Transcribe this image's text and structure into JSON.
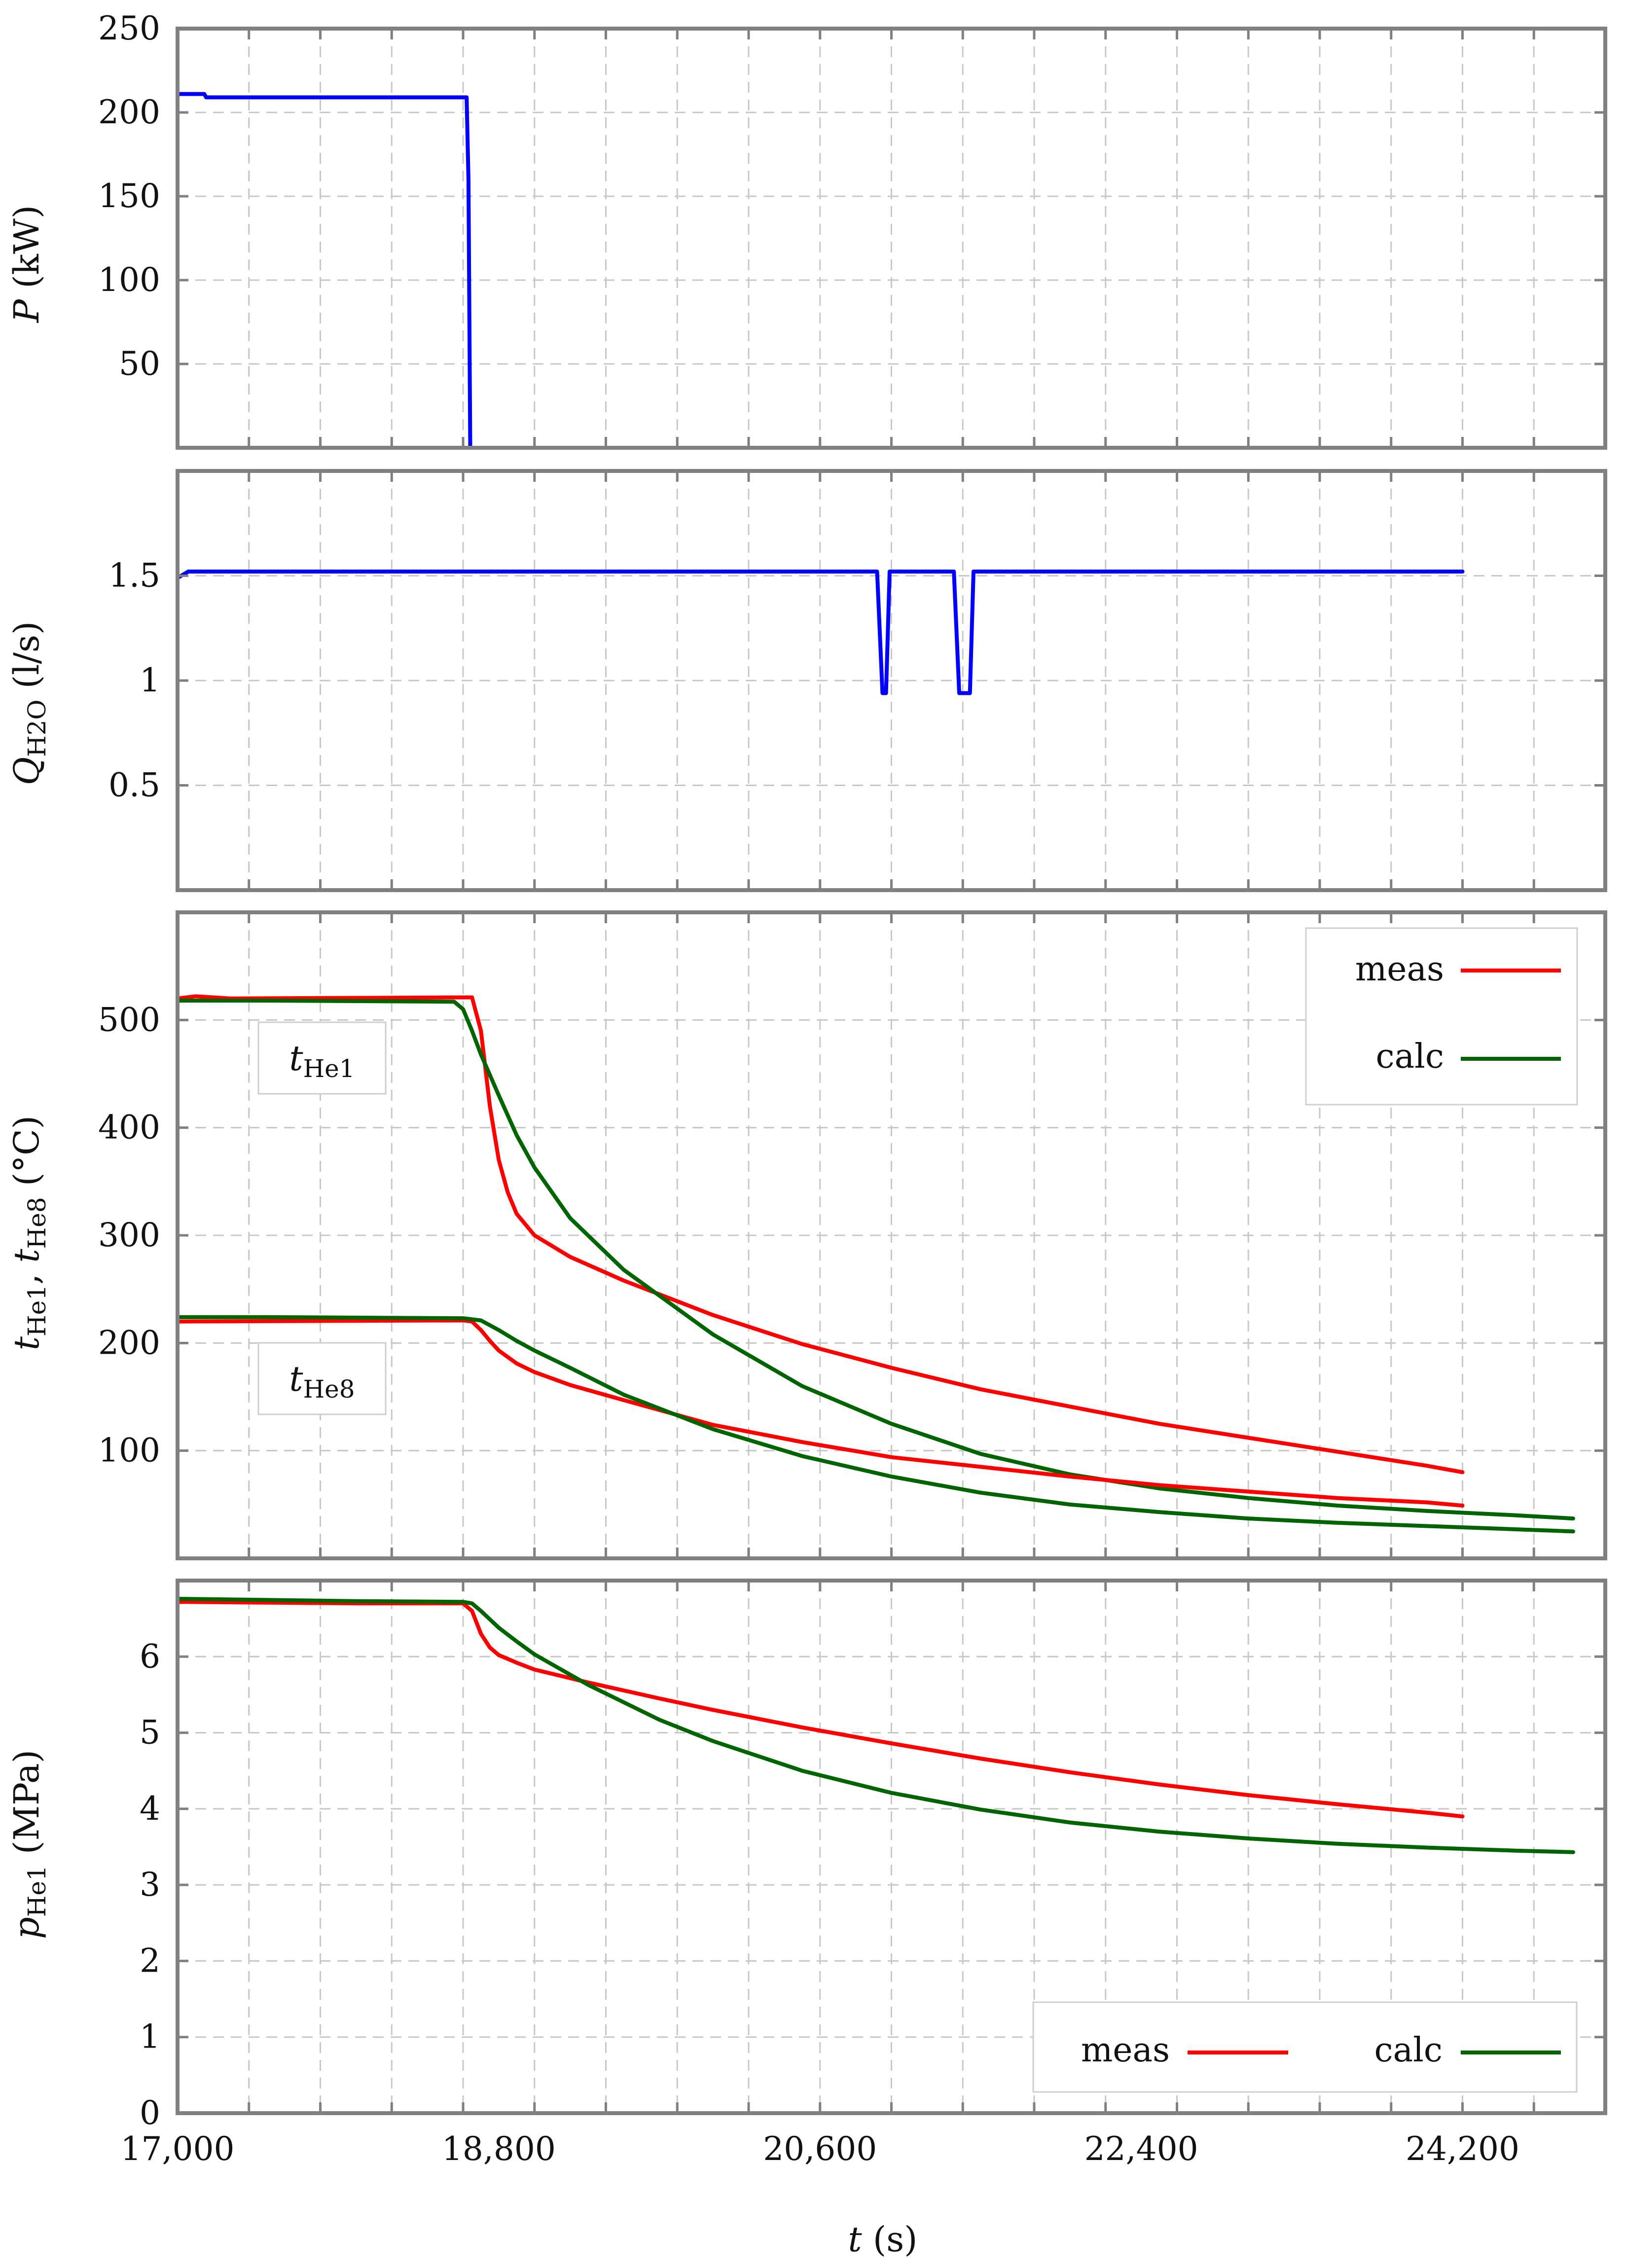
{
  "chart_data": [
    {
      "id": "power",
      "type": "line",
      "ylabel_main": "P",
      "ylabel_unit": " (kW)",
      "xlim": [
        17000,
        25000
      ],
      "ylim": [
        0,
        250
      ],
      "y_ticks": [
        50,
        100,
        150,
        200,
        250
      ],
      "y_tick_labels": [
        "50",
        "100",
        "150",
        "200",
        "250"
      ],
      "grid": true,
      "series": [
        {
          "name": "P",
          "color": "#0000ff",
          "x": [
            17000,
            17150,
            17160,
            18620,
            18630,
            18640
          ],
          "y": [
            211,
            211,
            209,
            209,
            160,
            0
          ]
        }
      ]
    },
    {
      "id": "flow",
      "type": "line",
      "ylabel_main": "Q",
      "ylabel_sub": "H2O",
      "ylabel_unit": " (l/s)",
      "xlim": [
        17000,
        25000
      ],
      "ylim": [
        0,
        2
      ],
      "y_ticks": [
        0.5,
        1,
        1.5
      ],
      "y_tick_labels": [
        "0.5",
        "1",
        "1.5"
      ],
      "grid": true,
      "series": [
        {
          "name": "Q_H2O",
          "color": "#0000ff",
          "x": [
            17000,
            17040,
            17060,
            20920,
            20950,
            20970,
            20990,
            21350,
            21380,
            21440,
            21460,
            24200
          ],
          "y": [
            1.49,
            1.51,
            1.52,
            1.52,
            0.94,
            0.94,
            1.52,
            1.52,
            0.94,
            0.94,
            1.52,
            1.52
          ]
        }
      ]
    },
    {
      "id": "temperature",
      "type": "line",
      "ylabel_main": "t",
      "ylabel_sub": "He1",
      "ylabel_main2": "t",
      "ylabel_sub2": "He8",
      "ylabel_unit": " (°C)",
      "xlim": [
        17000,
        25000
      ],
      "ylim": [
        0,
        600
      ],
      "y_ticks": [
        100,
        200,
        300,
        400,
        500
      ],
      "y_tick_labels": [
        "100",
        "200",
        "300",
        "400",
        "500"
      ],
      "grid": true,
      "legend": "top-right",
      "legend_entries": [
        "meas",
        "calc"
      ],
      "annotations": [
        {
          "main": "t",
          "sub": "He1"
        },
        {
          "main": "t",
          "sub": "He8"
        }
      ],
      "series": [
        {
          "name": "meas tHe1",
          "color": "#ff0000",
          "x": [
            17000,
            17100,
            17300,
            18600,
            18650,
            18700,
            18750,
            18800,
            18850,
            18900,
            19000,
            19200,
            19500,
            20000,
            20500,
            21000,
            21500,
            22000,
            22500,
            23000,
            23500,
            24000,
            24200
          ],
          "y": [
            520,
            522,
            520,
            521,
            521,
            490,
            420,
            370,
            340,
            320,
            300,
            280,
            258,
            226,
            199,
            177,
            157,
            141,
            125,
            112,
            99,
            86,
            80
          ]
        },
        {
          "name": "calc tHe1",
          "color": "#006400",
          "x": [
            17000,
            17500,
            18550,
            18600,
            18650,
            18700,
            18800,
            18900,
            19000,
            19200,
            19500,
            20000,
            20500,
            21000,
            21500,
            22000,
            22500,
            23000,
            23500,
            24000,
            24500,
            24820
          ],
          "y": [
            518,
            518,
            517,
            510,
            490,
            468,
            430,
            393,
            363,
            316,
            268,
            208,
            160,
            125,
            97,
            78,
            65,
            56,
            49,
            44,
            40,
            37
          ]
        },
        {
          "name": "meas tHe8",
          "color": "#ff0000",
          "x": [
            17000,
            18600,
            18650,
            18700,
            18750,
            18800,
            18900,
            19000,
            19200,
            19500,
            20000,
            20500,
            21000,
            21500,
            22000,
            22500,
            23000,
            23500,
            24000,
            24200
          ],
          "y": [
            220,
            221,
            220,
            212,
            202,
            193,
            181,
            173,
            161,
            147,
            124,
            108,
            94,
            85,
            76,
            68,
            62,
            56,
            52,
            49
          ]
        },
        {
          "name": "calc tHe8",
          "color": "#006400",
          "x": [
            17000,
            17500,
            18600,
            18700,
            18800,
            18900,
            19000,
            19200,
            19500,
            20000,
            20500,
            21000,
            21500,
            22000,
            22500,
            23000,
            23500,
            24000,
            24500,
            24820
          ],
          "y": [
            224,
            224,
            223,
            221,
            212,
            202,
            193,
            177,
            152,
            120,
            95,
            76,
            61,
            50,
            43,
            37,
            33,
            30,
            27,
            25
          ]
        }
      ]
    },
    {
      "id": "pressure",
      "type": "line",
      "ylabel_main": "p",
      "ylabel_sub": "He1",
      "ylabel_unit": " (MPa)",
      "xlim": [
        17000,
        25000
      ],
      "ylim": [
        0,
        7
      ],
      "y_ticks": [
        0,
        1,
        2,
        3,
        4,
        5,
        6
      ],
      "y_tick_labels": [
        "0",
        "1",
        "2",
        "3",
        "4",
        "5",
        "6"
      ],
      "x_ticks": [
        17000,
        18800,
        20600,
        22400,
        24200
      ],
      "x_tick_labels": [
        "17,000",
        "18,800",
        "20,600",
        "22,400",
        "24,200"
      ],
      "xlabel_main": "t",
      "xlabel_unit": " (s)",
      "grid": true,
      "legend": "bottom-right",
      "legend_entries": [
        "meas",
        "calc"
      ],
      "series": [
        {
          "name": "meas",
          "color": "#ff0000",
          "x": [
            17000,
            18000,
            18600,
            18650,
            18700,
            18750,
            18800,
            18900,
            19000,
            19300,
            19700,
            20000,
            20500,
            21000,
            21500,
            22000,
            22500,
            23000,
            23500,
            24000,
            24200
          ],
          "y": [
            6.72,
            6.7,
            6.7,
            6.6,
            6.3,
            6.12,
            6.02,
            5.92,
            5.83,
            5.66,
            5.45,
            5.3,
            5.07,
            4.86,
            4.66,
            4.48,
            4.32,
            4.18,
            4.06,
            3.95,
            3.9
          ]
        },
        {
          "name": "calc",
          "color": "#006400",
          "x": [
            17000,
            18000,
            18600,
            18650,
            18700,
            18800,
            18900,
            19000,
            19300,
            19700,
            20000,
            20500,
            21000,
            21500,
            22000,
            22500,
            23000,
            23500,
            24000,
            24500,
            24820
          ],
          "y": [
            6.76,
            6.73,
            6.72,
            6.7,
            6.6,
            6.38,
            6.2,
            6.03,
            5.63,
            5.17,
            4.89,
            4.5,
            4.21,
            3.99,
            3.82,
            3.7,
            3.61,
            3.54,
            3.49,
            3.45,
            3.43
          ]
        }
      ]
    }
  ]
}
